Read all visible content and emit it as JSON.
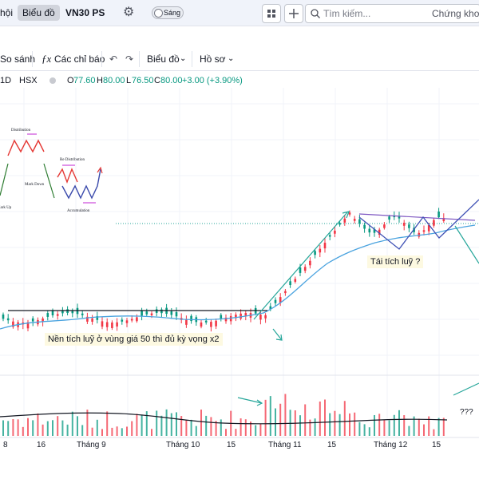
{
  "topbar": {
    "left_partial": "hội",
    "chart_tab": "Biểu đồ",
    "symbol": "VN30 PS",
    "theme_label": "Sáng",
    "search_placeholder": "Tìm kiếm...",
    "right_partial": "Chứng khoán"
  },
  "toolbar": {
    "compare": "So sánh",
    "indicators": "Các chỉ báo",
    "chart_menu": "Biểu đồ",
    "profile_menu": "Hồ sơ"
  },
  "legend": {
    "interval": "1D",
    "exchange": "HSX",
    "open_label": "O",
    "open": "77.60",
    "high_label": "H",
    "high": "80.00",
    "low_label": "L",
    "low": "76.50",
    "close_label": "C",
    "close": "80.00",
    "change": "+3.00 (+3.90%)",
    "up_color": "#089981",
    "down_color": "#f23645"
  },
  "wyckoff_inset": {
    "distribution": "Distribution",
    "re_distribution": "Re Distribution",
    "mark_down": "Mark Down",
    "mark_up": "Mark Up",
    "accumulation": "Accumulation"
  },
  "annotations": {
    "base_note": "Nền tích luỹ ở vùng giá 50 thì đủ kỳ vọng x2",
    "reaccum_note": "Tái tích luỹ ?",
    "volume_note": "???"
  },
  "time_axis": {
    "labels": [
      "8",
      "16",
      "Tháng 9",
      "Tháng 10",
      "15",
      "Tháng 11",
      "15",
      "Tháng 12",
      "15"
    ]
  }
}
